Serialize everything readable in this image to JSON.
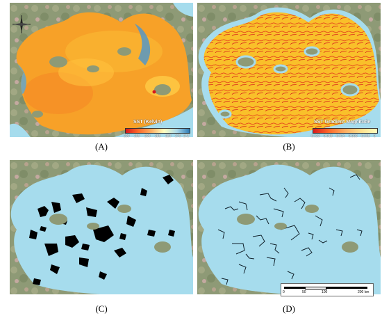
{
  "panels": [
    {
      "caption": "(A)"
    },
    {
      "caption": "(B)"
    },
    {
      "caption": "(C)"
    },
    {
      "caption": "(D)"
    }
  ],
  "legend_a": {
    "title": "SST (Kelvin)",
    "ticks": [
      "299",
      "295",
      "290",
      "285",
      "280",
      "276",
      "272"
    ],
    "colors": [
      "#d7191c",
      "#fd6a2a",
      "#fdae61",
      "#ffffbf",
      "#abd9e9",
      "#2c7bb6"
    ]
  },
  "legend_b": {
    "title": "SST Gradient Magnitude",
    "ticks": [
      "0.023",
      "0.018",
      "0.014",
      "0.009",
      "0.005",
      "0"
    ],
    "colors": [
      "#d7191c",
      "#fd6a2a",
      "#fdae61",
      "#fee08b",
      "#ffffbf"
    ]
  },
  "scale": {
    "ticks": [
      "0",
      "50",
      "100",
      "200 km"
    ]
  },
  "colors": {
    "land": "#8e9a76",
    "water": "#a6dced",
    "sst_fill": "#f7a128",
    "gradient_fill": "#f9c02a",
    "front_fill": "#000000"
  }
}
